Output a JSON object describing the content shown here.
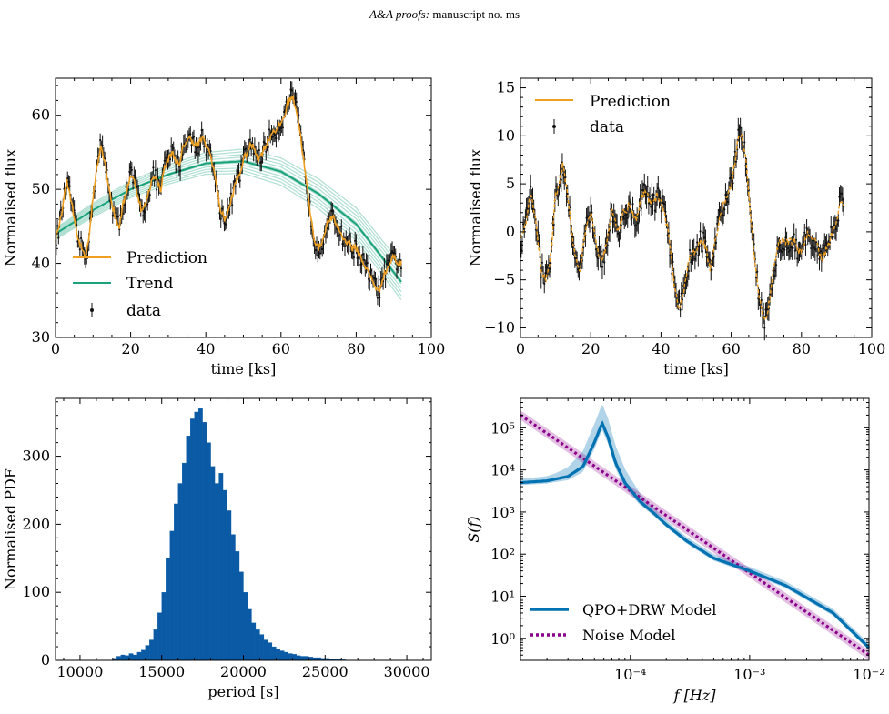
{
  "header": {
    "italic": "A&A proofs:",
    "rest": "manuscript no. ms"
  },
  "chart_data": [
    {
      "type": "line",
      "xlabel": "time [ks]",
      "ylabel": "Normalised flux",
      "xlim": [
        0,
        100
      ],
      "ylim": [
        30,
        65
      ],
      "xticks": [
        "0",
        "20",
        "40",
        "60",
        "80",
        "100"
      ],
      "yticks": [
        "30",
        "40",
        "50",
        "60"
      ],
      "legend": {
        "placement": "bottom-left",
        "entries": [
          "Prediction",
          "Trend",
          "data"
        ]
      },
      "series": [
        {
          "name": "Prediction",
          "color": "#f0a020",
          "x": [
            0,
            1,
            2,
            3,
            4,
            5,
            6,
            7,
            8,
            9,
            10,
            11,
            12,
            13,
            14,
            15,
            16,
            17,
            18,
            19,
            20,
            21,
            22,
            23,
            24,
            25,
            26,
            27,
            28,
            29,
            30,
            31,
            32,
            33,
            34,
            35,
            36,
            37,
            38,
            39,
            40,
            41,
            42,
            43,
            44,
            45,
            46,
            47,
            48,
            49,
            50,
            51,
            52,
            53,
            54,
            55,
            56,
            57,
            58,
            59,
            60,
            61,
            62,
            63,
            64,
            65,
            66,
            67,
            68,
            69,
            70,
            71,
            72,
            73,
            74,
            75,
            76,
            77,
            78,
            79,
            80,
            81,
            82,
            83,
            84,
            85,
            86,
            87,
            88,
            89,
            90,
            91,
            92
          ],
          "y": [
            43,
            45,
            48,
            51,
            49,
            46,
            43,
            42,
            41,
            44,
            49,
            53,
            56,
            54,
            51,
            48,
            46,
            45,
            48,
            50,
            52,
            51,
            49,
            47,
            48,
            50,
            52,
            51,
            50,
            53,
            54,
            55,
            54,
            53,
            56,
            56.5,
            57,
            56,
            56,
            57,
            56,
            55,
            53,
            50,
            47,
            46,
            47,
            49,
            51,
            52,
            54,
            55,
            56,
            55.5,
            54,
            55,
            56,
            57,
            58,
            58,
            59,
            60,
            62,
            62.5,
            61,
            58,
            54,
            50,
            46,
            43,
            42,
            43,
            45,
            46,
            46,
            45,
            44,
            43,
            43,
            42,
            42,
            41,
            40,
            39,
            38,
            37,
            36,
            38,
            39,
            40,
            41,
            40,
            40
          ]
        },
        {
          "name": "Trend",
          "color": "#1aa37a",
          "x": [
            0,
            10,
            20,
            30,
            40,
            50,
            60,
            70,
            80,
            92
          ],
          "y": [
            44,
            47.2,
            50,
            52,
            53.5,
            53.8,
            52.4,
            49.4,
            45.3,
            37.5
          ]
        }
      ]
    },
    {
      "type": "line",
      "xlabel": "time [ks]",
      "ylabel": "Normalised flux",
      "xlim": [
        0,
        100
      ],
      "ylim": [
        -11,
        16
      ],
      "xticks": [
        "0",
        "20",
        "40",
        "60",
        "80",
        "100"
      ],
      "yticks": [
        "−10",
        "−5",
        "0",
        "5",
        "10",
        "15"
      ],
      "legend": {
        "placement": "top-left",
        "entries": [
          "Prediction",
          "data"
        ]
      },
      "series": [
        {
          "name": "Prediction",
          "color": "#f0a020",
          "x": [
            0,
            1,
            2,
            3,
            4,
            5,
            6,
            7,
            8,
            9,
            10,
            11,
            12,
            13,
            14,
            15,
            16,
            17,
            18,
            19,
            20,
            21,
            22,
            23,
            24,
            25,
            26,
            27,
            28,
            29,
            30,
            31,
            32,
            33,
            34,
            35,
            36,
            37,
            38,
            39,
            40,
            41,
            42,
            43,
            44,
            45,
            46,
            47,
            48,
            49,
            50,
            51,
            52,
            53,
            54,
            55,
            56,
            57,
            58,
            59,
            60,
            61,
            62,
            63,
            64,
            65,
            66,
            67,
            68,
            69,
            70,
            71,
            72,
            73,
            74,
            75,
            76,
            77,
            78,
            79,
            80,
            81,
            82,
            83,
            84,
            85,
            86,
            87,
            88,
            89,
            90,
            91,
            92
          ],
          "y": [
            -1,
            0,
            2,
            4,
            2,
            -1,
            -4,
            -5,
            -4,
            -1,
            4,
            5,
            7,
            5,
            2,
            -1,
            -3,
            -4,
            -1,
            1,
            2,
            0,
            -2,
            -3,
            -2,
            0,
            2,
            1,
            0,
            2,
            2,
            3,
            2,
            1,
            3,
            4,
            4,
            3,
            3,
            4,
            3,
            2,
            0,
            -3,
            -6,
            -8,
            -7,
            -5,
            -3,
            -2,
            -2,
            -1,
            -1,
            -2,
            -4,
            -2,
            0,
            2,
            3,
            4,
            5,
            7,
            10,
            10,
            8,
            4,
            0,
            -4,
            -7,
            -9,
            -9,
            -7,
            -4,
            -2,
            -1,
            -1,
            -1,
            -1,
            -1,
            -2,
            -2,
            -1,
            0,
            -1,
            -1,
            -2,
            -3,
            -2,
            -1,
            0,
            1,
            3,
            3
          ]
        }
      ]
    },
    {
      "type": "bar",
      "xlabel": "period [s]",
      "ylabel": "Normalised PDF",
      "xlim": [
        8500,
        31500
      ],
      "ylim": [
        0,
        385
      ],
      "xticks": [
        "10000",
        "15000",
        "20000",
        "25000",
        "30000"
      ],
      "yticks": [
        "0",
        "100",
        "200",
        "300"
      ],
      "bin_width": 250,
      "bin_starts": [
        12000,
        12250,
        12500,
        12750,
        13000,
        13250,
        13500,
        13750,
        14000,
        14250,
        14500,
        14750,
        15000,
        15250,
        15500,
        15750,
        16000,
        16250,
        16500,
        16750,
        17000,
        17250,
        17500,
        17750,
        18000,
        18250,
        18500,
        18750,
        19000,
        19250,
        19500,
        19750,
        20000,
        20250,
        20500,
        20750,
        21000,
        21250,
        21500,
        21750,
        22000,
        22250,
        22500,
        22750,
        23000,
        23250,
        23500,
        23750,
        24000,
        24250,
        24500,
        24750,
        25000,
        25250,
        25500,
        25750,
        26000
      ],
      "values": [
        3,
        6,
        8,
        7,
        10,
        8,
        12,
        15,
        22,
        30,
        45,
        70,
        100,
        150,
        190,
        230,
        260,
        290,
        330,
        355,
        365,
        370,
        350,
        320,
        285,
        260,
        275,
        250,
        220,
        185,
        160,
        130,
        100,
        75,
        55,
        45,
        38,
        30,
        26,
        20,
        16,
        14,
        12,
        10,
        9,
        7,
        6,
        6,
        5,
        4,
        4,
        3,
        3,
        2,
        2,
        2,
        1
      ],
      "color": "#0a5aa5"
    },
    {
      "type": "line",
      "xlabel": "f [Hz]",
      "ylabel": "S(f)",
      "xscale": "log",
      "yscale": "log",
      "xlim": [
        1.2e-05,
        0.01
      ],
      "ylim": [
        0.3,
        500000
      ],
      "xticks": [
        "10⁻⁴",
        "10⁻³",
        "10⁻²"
      ],
      "yticks": [
        "10⁰",
        "10¹",
        "10²",
        "10³",
        "10⁴",
        "10⁵"
      ],
      "legend": {
        "placement": "bottom-left",
        "entries": [
          "QPO+DRW Model",
          "Noise Model"
        ]
      },
      "series": [
        {
          "name": "QPO+DRW Model",
          "color": "#0072b2",
          "x": [
            1.2e-05,
            2e-05,
            3e-05,
            4e-05,
            5e-05,
            5.8e-05,
            6.5e-05,
            7.5e-05,
            9e-05,
            0.00012,
            0.00016,
            0.0002,
            0.0003,
            0.0005,
            0.001,
            0.002,
            0.005,
            0.01
          ],
          "y": [
            5000,
            5500,
            7000,
            12000,
            45000,
            130000,
            60000,
            15000,
            5000,
            1800,
            900,
            500,
            200,
            80,
            40,
            18,
            4,
            0.6
          ]
        },
        {
          "name": "Noise Model",
          "color": "#8b008b",
          "x": [
            1.2e-05,
            0.01
          ],
          "y": [
            200000,
            0.4
          ]
        }
      ]
    }
  ]
}
